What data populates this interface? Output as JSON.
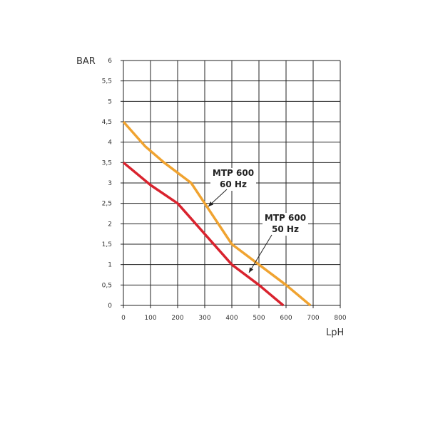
{
  "chart_data": {
    "type": "line",
    "ylabel": "BAR",
    "xlabel": "LpH",
    "xlim": [
      0,
      800
    ],
    "xticks": [
      0,
      100,
      200,
      300,
      400,
      500,
      600,
      700,
      800
    ],
    "ylim": [
      0,
      6
    ],
    "yticks": [
      0,
      {
        "value": 0.5,
        "label": "0,5"
      },
      1,
      {
        "value": 1.5,
        "label": "1,5"
      },
      2,
      {
        "value": 2.5,
        "label": "2,5"
      },
      3,
      {
        "value": 3.5,
        "label": "3,5"
      },
      4,
      {
        "value": 4.5,
        "label": "4,5"
      },
      5,
      {
        "value": 5.5,
        "label": "5,5"
      },
      6
    ],
    "grid": true,
    "series": [
      {
        "color": "#f0a330",
        "x": [
          0,
          80,
          150,
          250,
          300,
          400,
          500,
          600,
          690
        ],
        "values": [
          4.5,
          3.9,
          3.5,
          3.0,
          2.5,
          1.5,
          1.0,
          0.5,
          0
        ]
      },
      {
        "color": "#d9232e",
        "x": [
          0,
          100,
          200,
          300,
          400,
          500,
          590
        ],
        "values": [
          3.5,
          2.95,
          2.5,
          1.75,
          1.0,
          0.5,
          0
        ]
      }
    ],
    "annotations": [
      {
        "text": [
          "MTP 600",
          "60 Hz"
        ]
      },
      {
        "text": [
          "MTP 600",
          "50 Hz"
        ]
      }
    ]
  }
}
